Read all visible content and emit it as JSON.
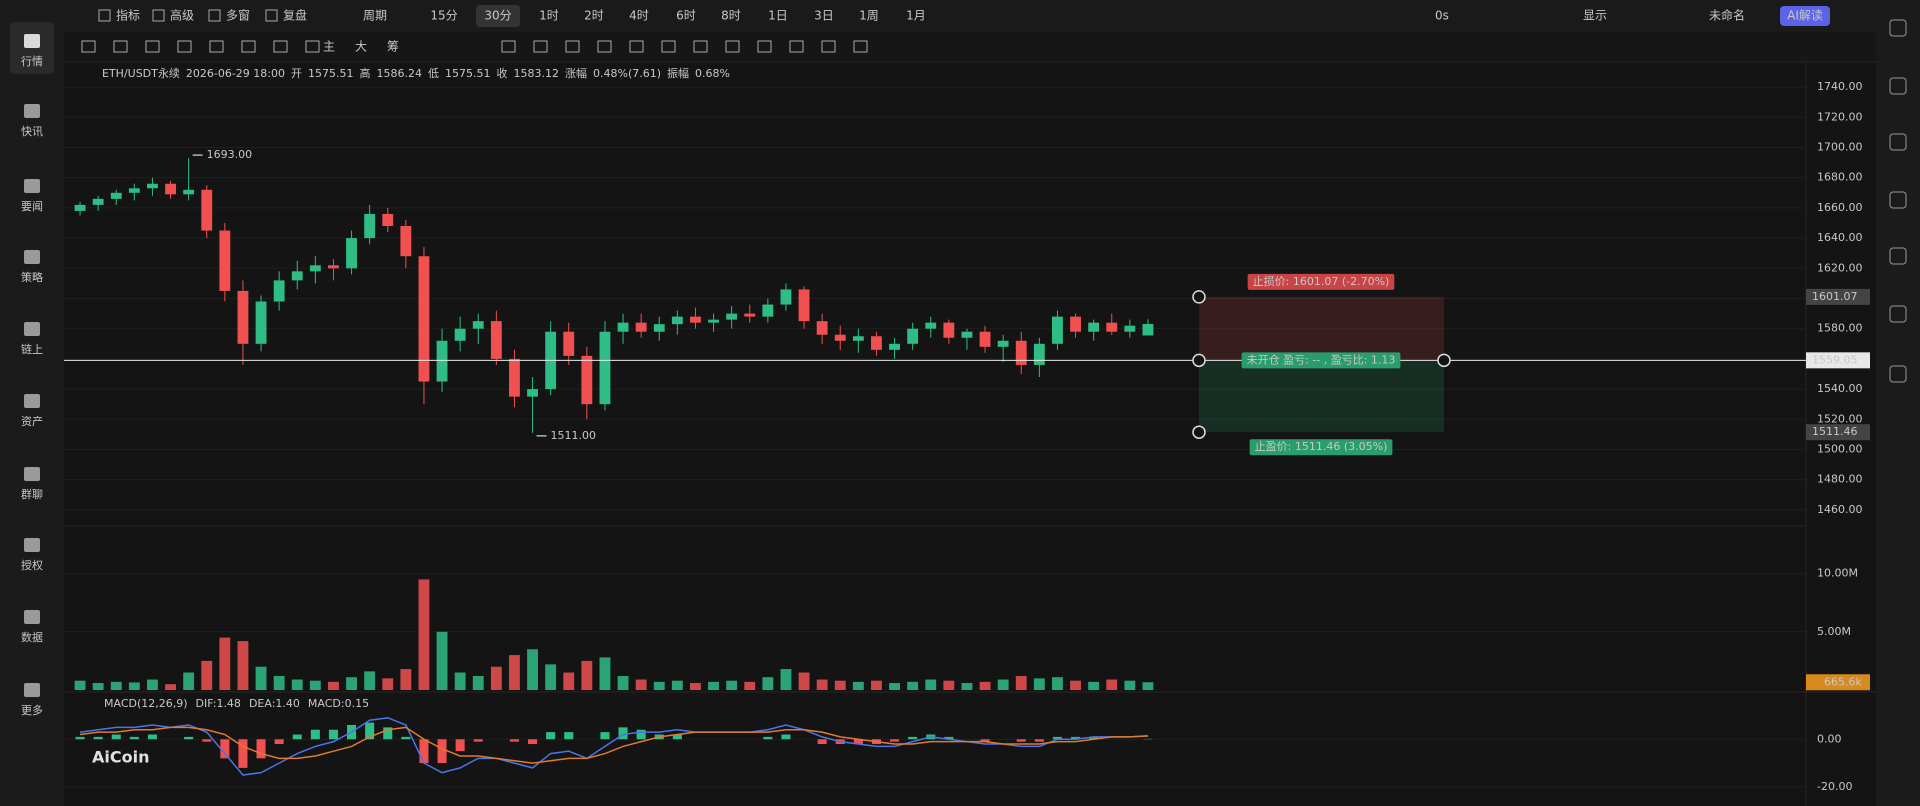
{
  "sidebar": {
    "items": [
      "行情",
      "快讯",
      "要闻",
      "策略",
      "链上",
      "资产",
      "群聊",
      "授权",
      "数据",
      "更多"
    ]
  },
  "toolbar": {
    "left": [
      "指标",
      "高级",
      "多窗",
      "复盘"
    ],
    "period": "周期",
    "intervals": [
      "15分",
      "30分",
      "1时",
      "2时",
      "4时",
      "6时",
      "8时",
      "1日",
      "3日",
      "1周",
      "1月"
    ],
    "active": "30分",
    "right": [
      "0s",
      "显示",
      "未命名",
      "AI解读"
    ]
  },
  "drawing_toolbar": {
    "labels": [
      "主",
      "大",
      "筹"
    ]
  },
  "info": {
    "symbol": "ETH/USDT永续",
    "time": "2026-06-29 18:00",
    "open_label": "开",
    "high_label": "高",
    "low_label": "低",
    "close_label": "收",
    "change_label": "涨幅",
    "change": "0.48%(7.61)",
    "amplitude_label": "振幅",
    "amplitude": "0.68%"
  },
  "logo": "AiCoin",
  "chart_data": {
    "type": "candlestick",
    "up_color": "#2ebd85",
    "down_color": "#f0504f",
    "candles": [
      [
        1658,
        1664,
        1655,
        1662
      ],
      [
        1662,
        1668,
        1658,
        1666
      ],
      [
        1666,
        1672,
        1662,
        1670
      ],
      [
        1670,
        1676,
        1665,
        1673
      ],
      [
        1673,
        1680,
        1668,
        1676
      ],
      [
        1676,
        1678,
        1666,
        1669
      ],
      [
        1669,
        1693,
        1665,
        1672
      ],
      [
        1672,
        1675,
        1640,
        1645
      ],
      [
        1645,
        1650,
        1598,
        1605
      ],
      [
        1605,
        1612,
        1556,
        1570
      ],
      [
        1570,
        1602,
        1565,
        1598
      ],
      [
        1598,
        1618,
        1592,
        1612
      ],
      [
        1612,
        1625,
        1606,
        1618
      ],
      [
        1618,
        1628,
        1610,
        1622
      ],
      [
        1622,
        1626,
        1612,
        1620
      ],
      [
        1620,
        1645,
        1616,
        1640
      ],
      [
        1640,
        1662,
        1636,
        1656
      ],
      [
        1656,
        1660,
        1644,
        1648
      ],
      [
        1648,
        1652,
        1620,
        1628
      ],
      [
        1628,
        1634,
        1530,
        1545
      ],
      [
        1545,
        1580,
        1538,
        1572
      ],
      [
        1572,
        1588,
        1565,
        1580
      ],
      [
        1580,
        1590,
        1570,
        1585
      ],
      [
        1585,
        1592,
        1556,
        1560
      ],
      [
        1560,
        1566,
        1528,
        1535
      ],
      [
        1535,
        1548,
        1511,
        1540
      ],
      [
        1540,
        1585,
        1536,
        1578
      ],
      [
        1578,
        1584,
        1556,
        1562
      ],
      [
        1562,
        1568,
        1520,
        1530
      ],
      [
        1530,
        1585,
        1526,
        1578
      ],
      [
        1578,
        1590,
        1570,
        1584
      ],
      [
        1584,
        1590,
        1574,
        1578
      ],
      [
        1578,
        1588,
        1572,
        1583
      ],
      [
        1583,
        1592,
        1576,
        1588
      ],
      [
        1588,
        1594,
        1580,
        1584
      ],
      [
        1584,
        1590,
        1578,
        1586
      ],
      [
        1586,
        1595,
        1580,
        1590
      ],
      [
        1590,
        1596,
        1584,
        1588
      ],
      [
        1588,
        1600,
        1584,
        1596
      ],
      [
        1596,
        1610,
        1592,
        1606
      ],
      [
        1606,
        1608,
        1580,
        1585
      ],
      [
        1585,
        1590,
        1570,
        1576
      ],
      [
        1576,
        1582,
        1566,
        1572
      ],
      [
        1572,
        1580,
        1564,
        1575
      ],
      [
        1575,
        1578,
        1562,
        1566
      ],
      [
        1566,
        1574,
        1560,
        1570
      ],
      [
        1570,
        1584,
        1566,
        1580
      ],
      [
        1580,
        1588,
        1574,
        1584
      ],
      [
        1584,
        1586,
        1570,
        1574
      ],
      [
        1574,
        1580,
        1566,
        1578
      ],
      [
        1578,
        1582,
        1564,
        1568
      ],
      [
        1568,
        1576,
        1558,
        1572
      ],
      [
        1572,
        1578,
        1550,
        1556
      ],
      [
        1556,
        1574,
        1548,
        1570
      ],
      [
        1570,
        1592,
        1566,
        1588
      ],
      [
        1588,
        1590,
        1574,
        1578
      ],
      [
        1578,
        1586,
        1572,
        1584
      ],
      [
        1584,
        1590,
        1576,
        1578
      ],
      [
        1578,
        1586,
        1574,
        1582
      ],
      [
        1575.51,
        1586.24,
        1575.51,
        1583.12
      ]
    ],
    "ylim": [
      1450,
      1750
    ],
    "yticks": [
      {
        "value": 1460,
        "label": "1460.00"
      },
      {
        "value": 1480,
        "label": "1480.00"
      },
      {
        "value": 1500,
        "label": "1500.00"
      },
      {
        "value": 1520,
        "label": "1520.00"
      },
      {
        "value": 1540,
        "label": "1540.00"
      },
      {
        "value": 1560,
        "label": "1560.00"
      },
      {
        "value": 1580,
        "label": "1580.00"
      },
      {
        "value": 1600,
        "label": "1600.00"
      },
      {
        "value": 1620,
        "label": "1620.00"
      },
      {
        "value": 1640,
        "label": "1640.00"
      },
      {
        "value": 1660,
        "label": "1660.00"
      },
      {
        "value": 1680,
        "label": "1680.00"
      },
      {
        "value": 1700,
        "label": "1700.00"
      },
      {
        "value": 1720,
        "label": "1720.00"
      },
      {
        "value": 1740,
        "label": "1740.00"
      }
    ],
    "high_marker": {
      "value": 1693,
      "label": "1693.00"
    },
    "low_marker": {
      "value": 1511,
      "label": "1511.00"
    },
    "position": {
      "stop": {
        "value": 1601.07,
        "label": "止损价: 1601.07 (-2.70%)"
      },
      "entry": {
        "value": 1559.05,
        "label": "未开仓  盈亏: -- , 盈亏比: 1.13"
      },
      "target": {
        "value": 1511.46,
        "label": "止盈价: 1511.46 (3.05%)"
      }
    },
    "volume": {
      "values": [
        800000,
        600000,
        700000,
        650000,
        900000,
        500000,
        1500000,
        2500000,
        4500000,
        4200000,
        2000000,
        1200000,
        900000,
        800000,
        700000,
        1100000,
        1600000,
        1000000,
        1800000,
        9500000,
        5000000,
        1500000,
        1200000,
        2000000,
        3000000,
        3500000,
        2200000,
        1500000,
        2500000,
        2800000,
        1200000,
        900000,
        700000,
        800000,
        600000,
        700000,
        800000,
        700000,
        1100000,
        1800000,
        1500000,
        900000,
        800000,
        700000,
        800000,
        600000,
        700000,
        900000,
        800000,
        600000,
        700000,
        900000,
        1200000,
        1000000,
        1100000,
        800000,
        700000,
        900000,
        800000,
        665600
      ],
      "ylim": [
        0,
        14000000
      ],
      "yticks": [
        {
          "value": 5000000,
          "label": "5.00M"
        },
        {
          "value": 10000000,
          "label": "10.00M"
        }
      ],
      "last": {
        "value": 665600,
        "label": "665.6k"
      }
    },
    "macd": {
      "legend": "MACD(12,26,9)",
      "dif": {
        "label": "DIF:1.48",
        "color": "#4a74e8",
        "values": [
          3,
          4,
          5,
          5,
          6,
          5,
          6,
          3,
          -6,
          -15,
          -14,
          -10,
          -6,
          -3,
          -1,
          3,
          8,
          9,
          6,
          -10,
          -14,
          -12,
          -8,
          -8,
          -10,
          -12,
          -6,
          -5,
          -8,
          -3,
          2,
          3,
          3,
          4,
          3,
          3,
          3,
          3,
          4,
          6,
          4,
          1,
          -1,
          -2,
          -3,
          -3,
          -1,
          1,
          0,
          -1,
          -2,
          -2,
          -3,
          -3,
          0,
          0,
          1,
          1,
          1,
          1.48
        ]
      },
      "dea": {
        "label": "DEA:1.40",
        "color": "#e07b2e",
        "values": [
          2,
          3,
          3,
          4,
          4,
          5,
          5,
          4,
          2,
          -3,
          -6,
          -8,
          -8,
          -7,
          -5,
          -3,
          1,
          4,
          5,
          0,
          -4,
          -7,
          -7,
          -8,
          -9,
          -10,
          -9,
          -8,
          -8,
          -6,
          -3,
          -1,
          1,
          2,
          3,
          3,
          3,
          3,
          3,
          4,
          4,
          3,
          1,
          0,
          -1,
          -2,
          -2,
          -1,
          -1,
          -1,
          -1,
          -2,
          -2,
          -2,
          -1,
          -1,
          0,
          1,
          1,
          1.4
        ]
      },
      "hist": {
        "label": "MACD:0.15",
        "values": [
          1,
          1,
          2,
          1,
          2,
          0,
          1,
          -1,
          -8,
          -12,
          -8,
          -2,
          2,
          4,
          4,
          6,
          7,
          5,
          1,
          -10,
          -10,
          -5,
          -1,
          0,
          -1,
          -2,
          3,
          3,
          0,
          3,
          5,
          4,
          2,
          2,
          0,
          0,
          0,
          0,
          1,
          2,
          0,
          -2,
          -2,
          -2,
          -2,
          -1,
          1,
          2,
          1,
          0,
          -1,
          0,
          -1,
          -1,
          1,
          1,
          1,
          0,
          0,
          0.15
        ]
      },
      "ylim": [
        -28,
        19
      ],
      "yticks": [
        {
          "value": -20,
          "label": "-20.00"
        },
        {
          "value": 0,
          "label": "0.00"
        }
      ]
    }
  }
}
